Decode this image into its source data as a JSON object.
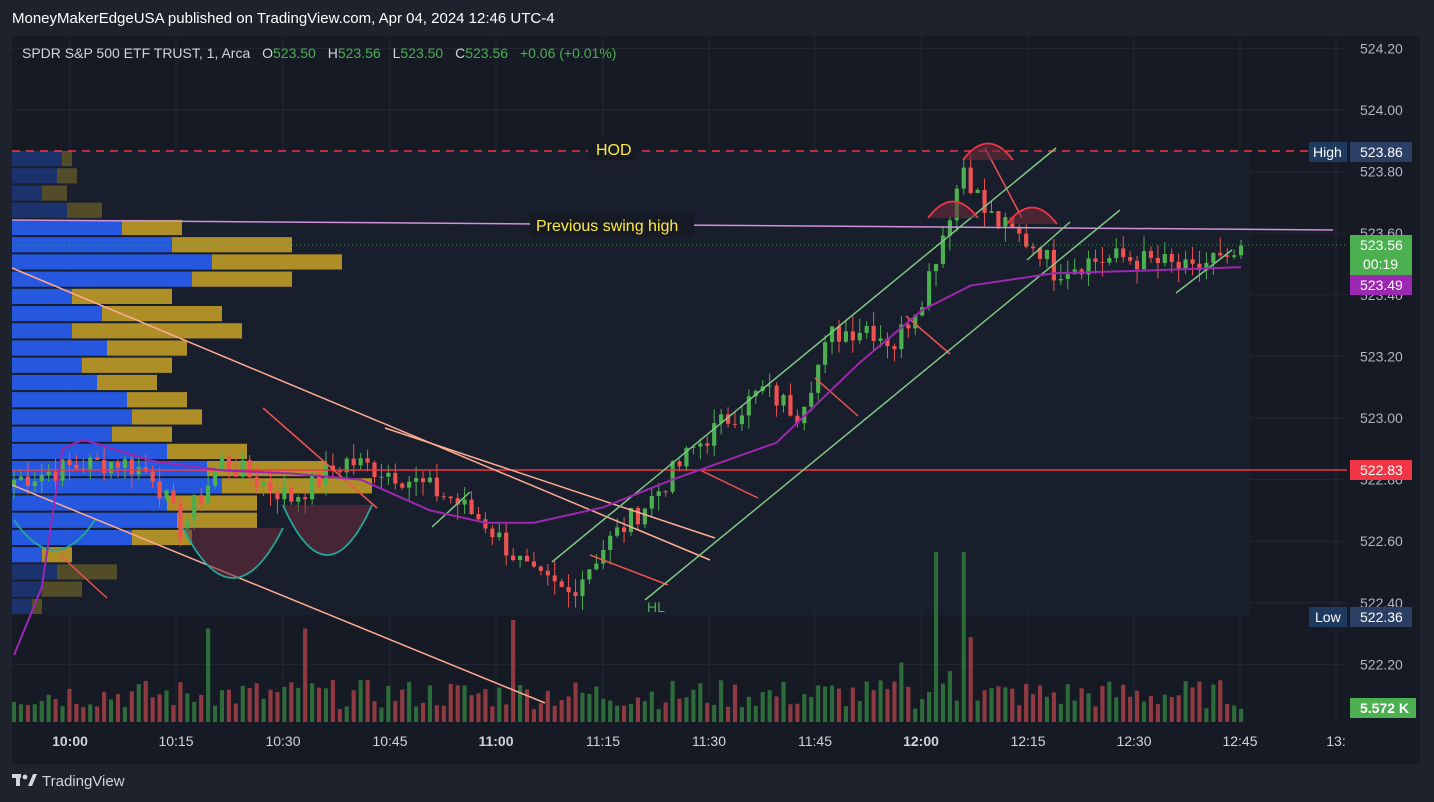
{
  "header": {
    "published": "MoneyMakerEdgeUSA published on TradingView.com, Apr 04, 2024 12:46 UTC-4"
  },
  "legend": {
    "symbol": "SPDR S&P 500 ETF TRUST, 1, Arca",
    "open_label": "O",
    "open": "523.50",
    "high_label": "H",
    "high": "523.56",
    "low_label": "L",
    "low": "523.50",
    "close_label": "C",
    "close": "523.56",
    "change": "+0.06 (+0.01%)"
  },
  "annotations": {
    "hod": "HOD",
    "prev_swing_high": "Previous swing high",
    "hl": "HL"
  },
  "price_axis": {
    "high_label": "High",
    "high_value": "523.86",
    "low_label": "Low",
    "low_value": "522.36",
    "last_price": "523.56",
    "countdown": "00:19",
    "ma_value": "523.49",
    "level_value": "522.83",
    "volume_value": "5.572 K"
  },
  "footer": {
    "brand": "TradingView"
  },
  "colors": {
    "up": "#4caf50",
    "down": "#ef5350",
    "ma": "#9c27b0",
    "level": "#f23645",
    "hod_line": "#f23645",
    "swing_line": "#ce93d8",
    "channel": "#81c784",
    "trend": "#ffab91"
  },
  "chart_data": {
    "type": "candlestick",
    "symbol": "SPDR S&P 500 ETF TRUST",
    "interval": "1",
    "exchange": "Arca",
    "x_tick_labels": [
      "10:00",
      "10:15",
      "10:30",
      "10:45",
      "11:00",
      "11:15",
      "11:30",
      "11:45",
      "12:00",
      "12:15",
      "12:30",
      "12:45",
      "13:"
    ],
    "y_tick_labels": [
      "524.20",
      "524.00",
      "523.80",
      "523.60",
      "523.40",
      "523.20",
      "523.00",
      "522.80",
      "522.60",
      "522.40",
      "522.20"
    ],
    "ylim": [
      522.12,
      524.26
    ],
    "price_path": [
      [
        0,
        522.8
      ],
      [
        8,
        522.84
      ],
      [
        15,
        522.86
      ],
      [
        20,
        522.82
      ],
      [
        24,
        522.64
      ],
      [
        30,
        522.86
      ],
      [
        40,
        522.74
      ],
      [
        48,
        522.86
      ],
      [
        55,
        522.82
      ],
      [
        63,
        522.74
      ],
      [
        68,
        522.66
      ],
      [
        75,
        522.48
      ],
      [
        80,
        522.43
      ],
      [
        85,
        522.58
      ],
      [
        92,
        522.74
      ],
      [
        98,
        522.9
      ],
      [
        103,
        523.0
      ],
      [
        108,
        523.09
      ],
      [
        113,
        523.02
      ],
      [
        118,
        523.27
      ],
      [
        123,
        523.3
      ],
      [
        127,
        523.24
      ],
      [
        131,
        523.4
      ],
      [
        134,
        523.6
      ],
      [
        137,
        523.82
      ],
      [
        140,
        523.67
      ],
      [
        144,
        523.6
      ],
      [
        148,
        523.55
      ],
      [
        150,
        523.48
      ],
      [
        155,
        523.51
      ],
      [
        160,
        523.52
      ],
      [
        166,
        523.5
      ],
      [
        170,
        523.47
      ],
      [
        173,
        523.52
      ],
      [
        175,
        523.49
      ],
      [
        177,
        523.56
      ]
    ],
    "ma_path": [
      [
        0,
        522.23
      ],
      [
        4,
        522.45
      ],
      [
        7,
        522.9
      ],
      [
        10,
        522.93
      ],
      [
        20,
        522.86
      ],
      [
        30,
        522.83
      ],
      [
        40,
        522.82
      ],
      [
        50,
        522.8
      ],
      [
        60,
        522.7
      ],
      [
        68,
        522.66
      ],
      [
        75,
        522.66
      ],
      [
        85,
        522.71
      ],
      [
        95,
        522.8
      ],
      [
        110,
        522.92
      ],
      [
        122,
        523.18
      ],
      [
        131,
        523.35
      ],
      [
        138,
        523.43
      ],
      [
        150,
        523.47
      ],
      [
        165,
        523.48
      ],
      [
        177,
        523.49
      ]
    ],
    "horizontal_levels": {
      "hod": 523.86,
      "level": 522.83,
      "previous_swing_high": [
        523.65,
        523.61
      ]
    },
    "volume_label": "5.572 K",
    "volume_profile_value_area": [
      522.4,
      523.9
    ]
  }
}
